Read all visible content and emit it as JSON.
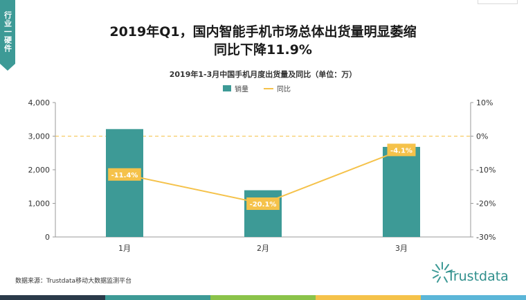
{
  "tag": {
    "text": "行业一硬件"
  },
  "headline": {
    "line1": "2019年Q1，国内智能手机市场总体出货量明显萎缩",
    "line2": "同比下降11.9%"
  },
  "chart_data": {
    "type": "bar",
    "title": "2019年1-3月中国手机月度出货量及同比（单位：万）",
    "categories": [
      "1月",
      "2月",
      "3月"
    ],
    "series": [
      {
        "name": "销量",
        "type": "bar",
        "axis": "left",
        "values": [
          3210,
          1390,
          2680
        ],
        "color": "#3d9a96"
      },
      {
        "name": "同比",
        "type": "line",
        "axis": "right",
        "values": [
          -11.4,
          -20.1,
          -4.1
        ],
        "labels": [
          "-11.4%",
          "-20.1%",
          "-4.1%"
        ],
        "color": "#f5c24a"
      }
    ],
    "ylim_left": [
      0,
      4000
    ],
    "yticks_left": [
      "4,000",
      "3,000",
      "2,000",
      "1,000",
      "0"
    ],
    "ylim_right": [
      -30,
      10
    ],
    "yticks_right": [
      "10%",
      "0%",
      "-10%",
      "-20%",
      "-30%"
    ],
    "reference_line": {
      "axis": "right",
      "value": 0,
      "style": "dashed",
      "color": "#f5c24a"
    },
    "legend_position": "top-center",
    "grid": false
  },
  "source": {
    "text": "数据来源：Trustdata移动大数据监测平台"
  },
  "logo": {
    "text": "Trustdata"
  },
  "bottom_strip_colors": [
    "#2b3a4a",
    "#3d9a96",
    "#8bc34a",
    "#f5c24a",
    "#5bb6d8"
  ]
}
